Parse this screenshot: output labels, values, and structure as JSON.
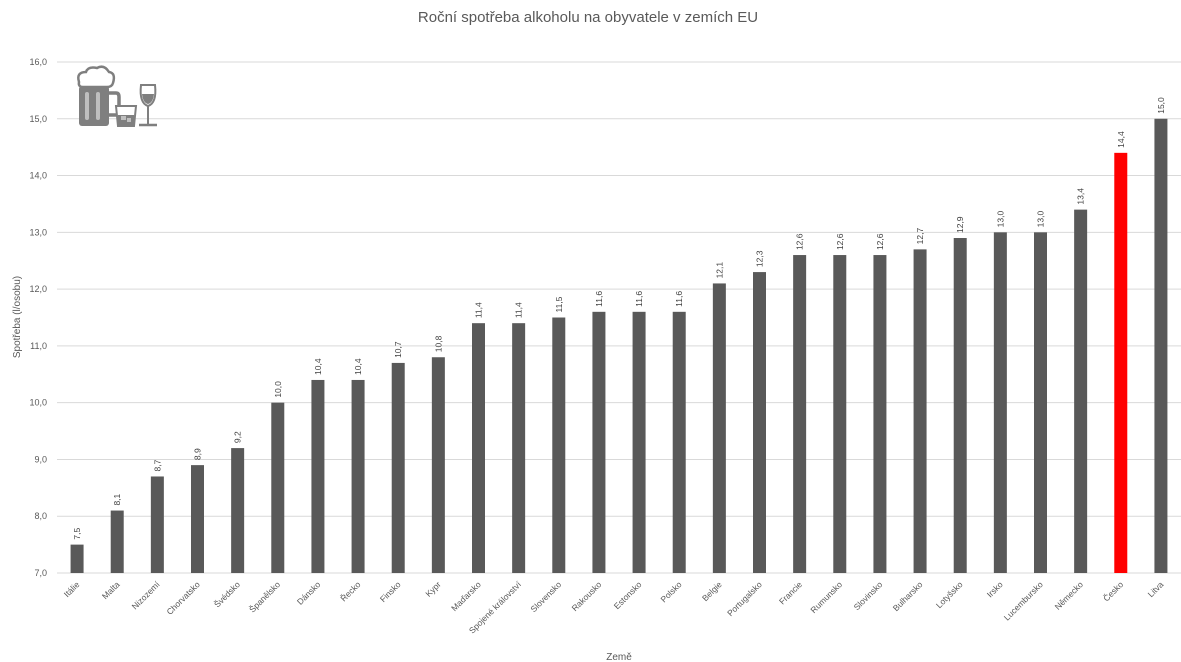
{
  "chart_data": {
    "type": "bar",
    "title": "Roční spotřeba alkoholu na obyvatele v zemích EU",
    "xlabel": "Země",
    "ylabel": "Spotřeba (l/osobu)",
    "ylim": [
      7.0,
      16.0
    ],
    "yticks": [
      "7,0",
      "8,0",
      "9,0",
      "10,0",
      "11,0",
      "12,0",
      "13,0",
      "14,0",
      "15,0",
      "16,0"
    ],
    "grid": true,
    "legend": "none",
    "colors": {
      "default": "#595959",
      "highlight": "#ff0000"
    },
    "highlight_category": "Česko",
    "categories": [
      "Itálie",
      "Malta",
      "Nizozemí",
      "Chorvatsko",
      "Švédsko",
      "Španělsko",
      "Dánsko",
      "Řecko",
      "Finsko",
      "Kypr",
      "Maďarsko",
      "Spojené království",
      "Slovensko",
      "Rakousko",
      "Estonsko",
      "Polsko",
      "Belgie",
      "Portugalsko",
      "Francie",
      "Rumunsko",
      "Slovinsko",
      "Bulharsko",
      "Lotyšsko",
      "Irsko",
      "Lucembursko",
      "Německo",
      "Česko",
      "Litva"
    ],
    "values": [
      7.5,
      8.1,
      8.7,
      8.9,
      9.2,
      10.0,
      10.4,
      10.4,
      10.7,
      10.8,
      11.4,
      11.4,
      11.5,
      11.6,
      11.6,
      11.6,
      12.1,
      12.3,
      12.6,
      12.6,
      12.6,
      12.7,
      12.9,
      13.0,
      13.0,
      13.4,
      14.4,
      15.0
    ],
    "value_labels": [
      "7,5",
      "8,1",
      "8,7",
      "8,9",
      "9,2",
      "10,0",
      "10,4",
      "10,4",
      "10,7",
      "10,8",
      "11,4",
      "11,4",
      "11,5",
      "11,6",
      "11,6",
      "11,6",
      "12,1",
      "12,3",
      "12,6",
      "12,6",
      "12,6",
      "12,7",
      "12,9",
      "13,0",
      "13,0",
      "13,4",
      "14,4",
      "15,0"
    ],
    "decoration_icons": [
      "beer-mug-icon",
      "whiskey-glass-icon",
      "wine-glass-icon"
    ]
  }
}
